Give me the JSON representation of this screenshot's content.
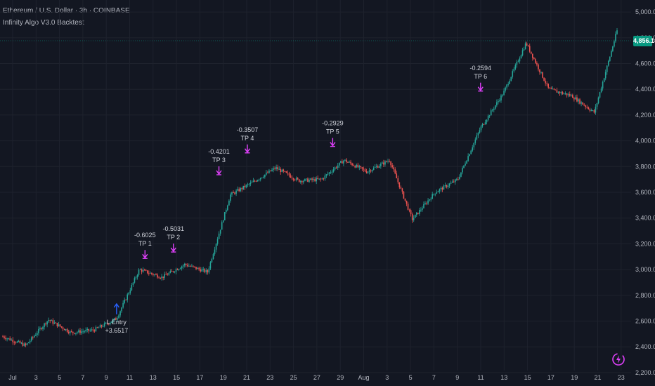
{
  "header": {
    "symbol_line": "Ethereum / U.S. Dollar · 3h · COINBASE",
    "indicator_line": "Infinity Algo V3.0 Backtest"
  },
  "current_price": "4,856.14",
  "colors": {
    "bg": "#131722",
    "up": "#26a69a",
    "down": "#ef5350",
    "signal": "#e040fb",
    "entry": "#2962ff",
    "grid": "#1e222d"
  },
  "y_axis": {
    "ticks": [
      "5,000.00",
      "4,800.00",
      "4,600.00",
      "4,400.00",
      "4,200.00",
      "4,000.00",
      "3,800.00",
      "3,600.00",
      "3,400.00",
      "3,200.00",
      "3,000.00",
      "2,800.00",
      "2,600.00",
      "2,400.00",
      "2,200.00"
    ]
  },
  "x_axis": {
    "ticks": [
      "Jul",
      "3",
      "5",
      "7",
      "9",
      "11",
      "13",
      "15",
      "17",
      "19",
      "21",
      "23",
      "25",
      "27",
      "29",
      "Aug",
      "3",
      "5",
      "7",
      "9",
      "11",
      "13",
      "15",
      "17",
      "19",
      "21",
      "23"
    ]
  },
  "annotations": [
    {
      "value": "-0.6025",
      "label": "TP 1"
    },
    {
      "value": "-0.5031",
      "label": "TP 2"
    },
    {
      "value": "-0.4201",
      "label": "TP 3"
    },
    {
      "value": "-0.3507",
      "label": "TP 4"
    },
    {
      "value": "-0.2929",
      "label": "TP 5"
    },
    {
      "value": "-0.2594",
      "label": "TP 6"
    }
  ],
  "entry": {
    "label": "L Entry",
    "value": "+3.6517"
  },
  "chart_data": {
    "type": "line",
    "ylim": [
      2150,
      5050
    ],
    "x": [
      0,
      2,
      4,
      6,
      8,
      10,
      12,
      14,
      16,
      18,
      20,
      22,
      24,
      26,
      28,
      30,
      32,
      34,
      36,
      38,
      40,
      42,
      44,
      46,
      48,
      50,
      52,
      54
    ],
    "y": [
      2480,
      2410,
      2610,
      2510,
      2530,
      2620,
      3000,
      2940,
      3040,
      2980,
      3580,
      3680,
      3790,
      3690,
      3700,
      3850,
      3760,
      3850,
      3390,
      3600,
      3700,
      4100,
      4370,
      4760,
      4400,
      4350,
      4220,
      4856
    ],
    "signals": [
      {
        "name": "TP 1",
        "x": 12.5,
        "y": 3010
      },
      {
        "name": "TP 2",
        "x": 15.0,
        "y": 3060
      },
      {
        "name": "TP 3",
        "x": 19.0,
        "y": 3660
      },
      {
        "name": "TP 4",
        "x": 21.5,
        "y": 3830
      },
      {
        "name": "TP 5",
        "x": 29.0,
        "y": 3880
      },
      {
        "name": "TP 6",
        "x": 42.0,
        "y": 4310
      }
    ],
    "entry_x": 10.0,
    "entry_y": 2750
  }
}
